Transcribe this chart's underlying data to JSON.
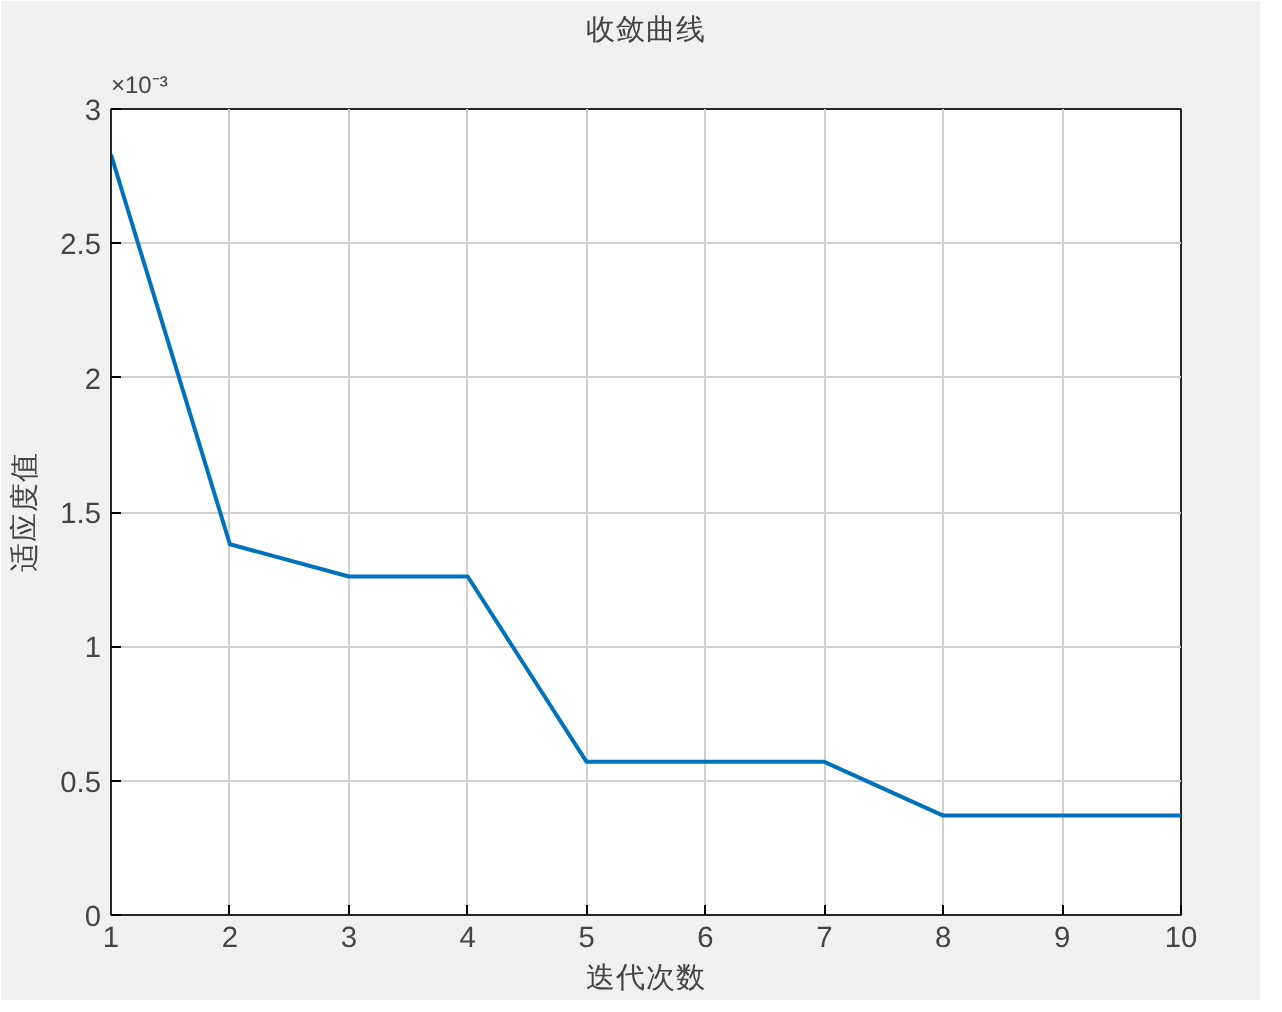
{
  "chart_data": {
    "type": "line",
    "title": "收敛曲线",
    "xlabel": "迭代次数",
    "ylabel": "适应度值",
    "x": [
      1,
      2,
      3,
      4,
      5,
      6,
      7,
      8,
      9,
      10
    ],
    "series": [
      {
        "color": "#0072bd",
        "values": [
          2.83,
          1.38,
          1.26,
          1.26,
          0.57,
          0.57,
          0.57,
          0.37,
          0.37,
          0.37
        ]
      }
    ],
    "xlim": [
      1,
      10
    ],
    "xticks": [
      1,
      2,
      3,
      4,
      5,
      6,
      7,
      8,
      9,
      10
    ],
    "ylim": [
      0,
      3
    ],
    "yticks": [
      0,
      0.5,
      1,
      1.5,
      2,
      2.5,
      3
    ],
    "annotations": [
      "×10⁻³"
    ],
    "grid": true,
    "marker": "none",
    "line_style": "solid"
  }
}
